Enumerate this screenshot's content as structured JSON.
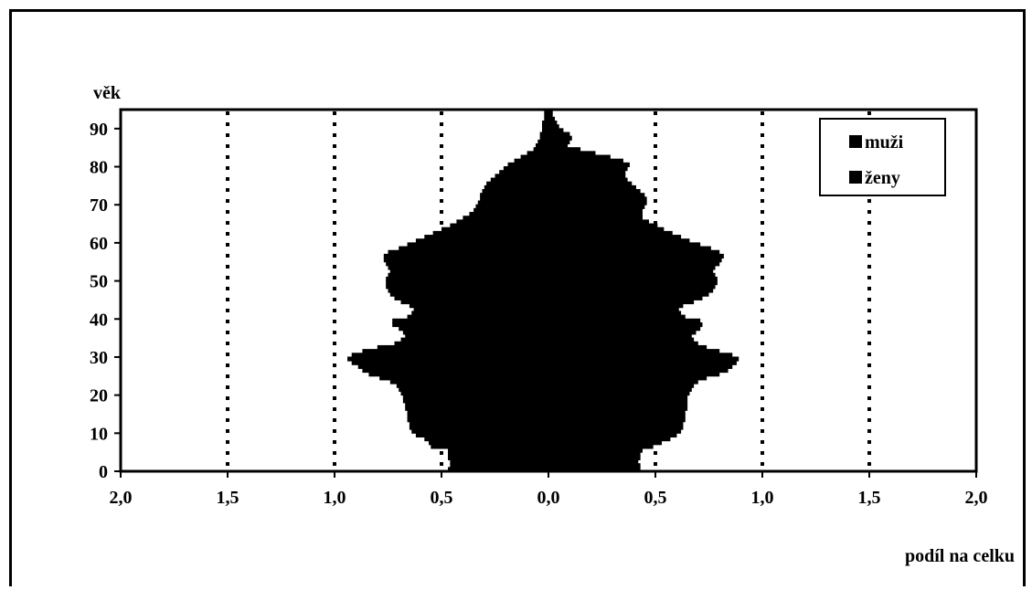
{
  "chart_data": {
    "type": "bar",
    "orientation": "horizontal-population-pyramid",
    "title": "",
    "ylabel": "věk",
    "xlabel": "podíl na celku",
    "y_ticks": [
      "0",
      "10",
      "20",
      "30",
      "40",
      "50",
      "60",
      "70",
      "80",
      "90"
    ],
    "y_range": [
      0,
      95
    ],
    "x_ticks_left": [
      "2,0",
      "1,5",
      "1,0",
      "0,5",
      "0,0"
    ],
    "x_ticks_right": [
      "0,5",
      "1,0",
      "1,5",
      "2,0"
    ],
    "x_range": [
      -2.0,
      2.0
    ],
    "gridlines": [
      -1.5,
      -1.0,
      -0.5,
      0.5,
      1.0,
      1.5
    ],
    "grid_style": "dotted",
    "legend_position": "top-right",
    "ages": [
      0,
      1,
      2,
      3,
      4,
      5,
      6,
      7,
      8,
      9,
      10,
      11,
      12,
      13,
      14,
      15,
      16,
      17,
      18,
      19,
      20,
      21,
      22,
      23,
      24,
      25,
      26,
      27,
      28,
      29,
      30,
      31,
      32,
      33,
      34,
      35,
      36,
      37,
      38,
      39,
      40,
      41,
      42,
      43,
      44,
      45,
      46,
      47,
      48,
      49,
      50,
      51,
      52,
      53,
      54,
      55,
      56,
      57,
      58,
      59,
      60,
      61,
      62,
      63,
      64,
      65,
      66,
      67,
      68,
      69,
      70,
      71,
      72,
      73,
      74,
      75,
      76,
      77,
      78,
      79,
      80,
      81,
      82,
      83,
      84,
      85,
      86,
      87,
      88,
      89,
      90,
      91,
      92,
      93,
      94
    ],
    "series": [
      {
        "name": "muži",
        "side": "left",
        "color": "#000000",
        "values": [
          0.47,
          0.46,
          0.46,
          0.47,
          0.47,
          0.47,
          0.55,
          0.56,
          0.58,
          0.62,
          0.64,
          0.65,
          0.65,
          0.66,
          0.66,
          0.66,
          0.67,
          0.67,
          0.68,
          0.68,
          0.69,
          0.7,
          0.71,
          0.74,
          0.79,
          0.84,
          0.87,
          0.89,
          0.92,
          0.94,
          0.92,
          0.87,
          0.8,
          0.72,
          0.69,
          0.67,
          0.68,
          0.7,
          0.73,
          0.73,
          0.66,
          0.64,
          0.63,
          0.65,
          0.69,
          0.72,
          0.74,
          0.75,
          0.76,
          0.76,
          0.76,
          0.75,
          0.74,
          0.75,
          0.76,
          0.77,
          0.77,
          0.75,
          0.7,
          0.66,
          0.62,
          0.58,
          0.54,
          0.5,
          0.46,
          0.43,
          0.4,
          0.37,
          0.35,
          0.34,
          0.33,
          0.32,
          0.32,
          0.31,
          0.3,
          0.29,
          0.27,
          0.25,
          0.23,
          0.21,
          0.19,
          0.16,
          0.13,
          0.1,
          0.07,
          0.06,
          0.05,
          0.04,
          0.04,
          0.03,
          0.03,
          0.03,
          0.02,
          0.02,
          0.02
        ]
      },
      {
        "name": "ženy",
        "side": "right",
        "color": "#000000",
        "values": [
          0.43,
          0.43,
          0.42,
          0.43,
          0.43,
          0.44,
          0.49,
          0.53,
          0.57,
          0.6,
          0.62,
          0.63,
          0.63,
          0.64,
          0.64,
          0.64,
          0.65,
          0.65,
          0.65,
          0.65,
          0.66,
          0.67,
          0.68,
          0.7,
          0.74,
          0.8,
          0.84,
          0.86,
          0.88,
          0.89,
          0.86,
          0.8,
          0.74,
          0.7,
          0.68,
          0.67,
          0.69,
          0.71,
          0.72,
          0.71,
          0.64,
          0.62,
          0.61,
          0.63,
          0.68,
          0.72,
          0.75,
          0.77,
          0.78,
          0.79,
          0.79,
          0.78,
          0.77,
          0.78,
          0.8,
          0.81,
          0.82,
          0.8,
          0.76,
          0.71,
          0.66,
          0.62,
          0.58,
          0.54,
          0.51,
          0.47,
          0.44,
          0.44,
          0.44,
          0.45,
          0.46,
          0.46,
          0.45,
          0.43,
          0.41,
          0.39,
          0.37,
          0.36,
          0.36,
          0.37,
          0.38,
          0.35,
          0.29,
          0.22,
          0.15,
          0.09,
          0.1,
          0.11,
          0.1,
          0.07,
          0.05,
          0.04,
          0.03,
          0.02,
          0.02
        ]
      }
    ]
  }
}
